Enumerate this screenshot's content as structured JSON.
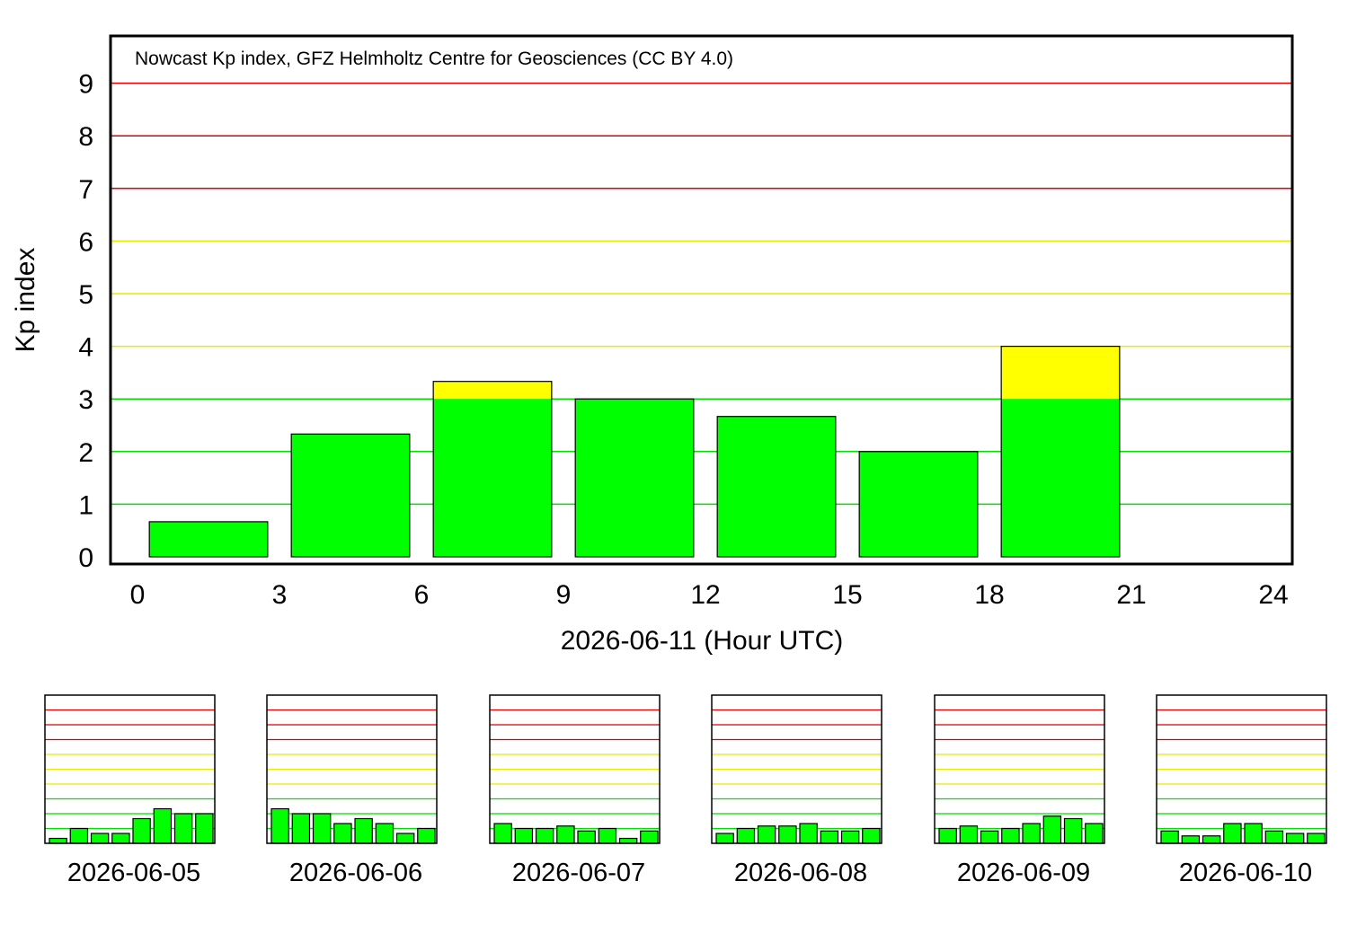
{
  "colors": {
    "quiet": "#00ff00",
    "active": "#ffff00",
    "storm": "#ff0000",
    "grid_quiet": "#00dd00",
    "grid_active": "#e8e800",
    "grid_storm": "#dd0000"
  },
  "chart_data": [
    {
      "type": "bar",
      "title": "Nowcast Kp index, GFZ Helmholtz Centre for Geosciences (CC BY 4.0)",
      "xlabel": "2026-06-11 (Hour UTC)",
      "ylabel": "Kp index",
      "xlim": [
        0,
        24
      ],
      "ylim": [
        0,
        9.9
      ],
      "x_ticks": [
        "0",
        "3",
        "6",
        "9",
        "12",
        "15",
        "18",
        "21",
        "24"
      ],
      "y_ticks": [
        "0",
        "1",
        "2",
        "3",
        "4",
        "5",
        "6",
        "7",
        "8",
        "9"
      ],
      "bin_start_hours": [
        0,
        3,
        6,
        9,
        12,
        15,
        18
      ],
      "values": [
        0.667,
        2.333,
        3.333,
        3.0,
        2.667,
        2.0,
        4.0
      ],
      "grid": true
    },
    {
      "type": "bar",
      "xlabel": "2026-06-05",
      "values": [
        0.333,
        1.0,
        0.667,
        0.667,
        1.667,
        2.333,
        2.0,
        2.0
      ],
      "ylim": [
        0,
        10
      ]
    },
    {
      "type": "bar",
      "xlabel": "2026-06-06",
      "values": [
        2.333,
        2.0,
        2.0,
        1.333,
        1.667,
        1.333,
        0.667,
        1.0
      ],
      "ylim": [
        0,
        10
      ]
    },
    {
      "type": "bar",
      "xlabel": "2026-06-07",
      "values": [
        1.333,
        1.0,
        1.0,
        1.167,
        0.833,
        1.0,
        0.333,
        0.833
      ],
      "ylim": [
        0,
        10
      ]
    },
    {
      "type": "bar",
      "xlabel": "2026-06-08",
      "values": [
        0.667,
        1.0,
        1.167,
        1.167,
        1.333,
        0.833,
        0.833,
        1.0
      ],
      "ylim": [
        0,
        10
      ]
    },
    {
      "type": "bar",
      "xlabel": "2026-06-09",
      "values": [
        1.0,
        1.167,
        0.833,
        1.0,
        1.333,
        1.833,
        1.667,
        1.333
      ],
      "ylim": [
        0,
        10
      ]
    },
    {
      "type": "bar",
      "xlabel": "2026-06-10",
      "values": [
        0.833,
        0.5,
        0.5,
        1.333,
        1.333,
        0.833,
        0.667,
        0.667
      ],
      "ylim": [
        0,
        10
      ]
    }
  ]
}
